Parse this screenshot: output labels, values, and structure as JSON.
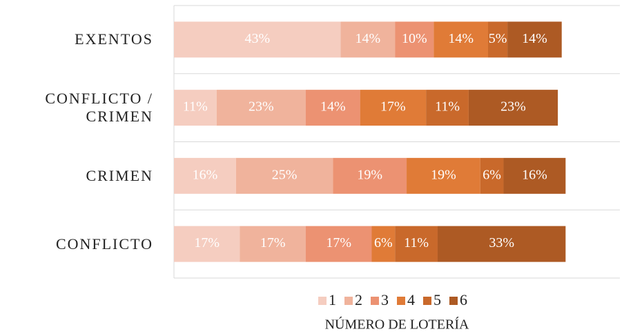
{
  "chart_data": {
    "type": "stacked-barh",
    "categories": [
      "EXENTOS",
      "CONFLICTO / CRIMEN",
      "CRIMEN",
      "CONFLICTO"
    ],
    "series": [
      {
        "name": "1",
        "color": "#f5cdc0",
        "values": [
          43,
          11,
          16,
          17
        ],
        "value_labels": [
          "43%",
          "11%",
          "16%",
          "17%"
        ]
      },
      {
        "name": "2",
        "color": "#f0b39c",
        "values": [
          14,
          23,
          25,
          17
        ],
        "value_labels": [
          "14%",
          "23%",
          "25%",
          "17%"
        ]
      },
      {
        "name": "3",
        "color": "#ec9272",
        "values": [
          10,
          14,
          19,
          17
        ],
        "value_labels": [
          "10%",
          "14%",
          "19%",
          "17%"
        ]
      },
      {
        "name": "4",
        "color": "#e07b37",
        "values": [
          14,
          17,
          19,
          6
        ],
        "value_labels": [
          "14%",
          "17%",
          "19%",
          "6%"
        ]
      },
      {
        "name": "5",
        "color": "#c9692b",
        "values": [
          5,
          11,
          6,
          11
        ],
        "value_labels": [
          "5%",
          "11%",
          "6%",
          "11%"
        ]
      },
      {
        "name": "6",
        "color": "#ad5a24",
        "values": [
          14,
          23,
          16,
          33
        ],
        "value_labels": [
          "14%",
          "23%",
          "16%",
          "33%"
        ]
      }
    ],
    "xlim": [
      0,
      115
    ],
    "xlabel": "NÚMERO DE LOTERÍA"
  }
}
